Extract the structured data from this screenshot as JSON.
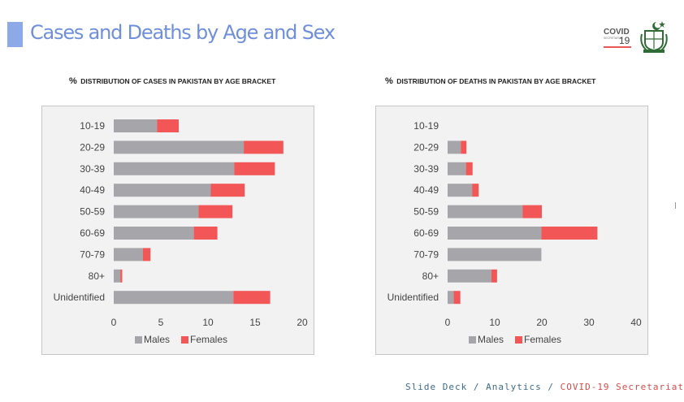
{
  "header": {
    "title": "Cases and Deaths by Age and Sex",
    "logo_covid": "COVID",
    "logo_covid_sub": "SECRETARIAT",
    "logo_19": "19"
  },
  "colors": {
    "males": "#a6a6aa",
    "females": "#f25656",
    "title": "#6f8fdc",
    "accent_bar": "#8ea9e8"
  },
  "charts": [
    {
      "title_first": "%",
      "title_rest": "Distribution of Cases in Pakistan by Age Bracket"
    },
    {
      "title_first": "%",
      "title_rest": "Distribution of Deaths in Pakistan by Age Bracket"
    }
  ],
  "chart_data": [
    {
      "type": "bar",
      "orientation": "horizontal",
      "stacked": true,
      "categories": [
        "10-19",
        "20-29",
        "30-39",
        "40-49",
        "50-59",
        "60-69",
        "70-79",
        "80+",
        "Unidentified"
      ],
      "series": [
        {
          "name": "Males",
          "values": [
            4.6,
            13.8,
            12.8,
            10.3,
            9.0,
            8.5,
            3.1,
            0.7,
            12.7
          ]
        },
        {
          "name": "Females",
          "values": [
            2.3,
            4.2,
            4.3,
            3.6,
            3.6,
            2.5,
            0.8,
            0.2,
            3.9
          ]
        }
      ],
      "xlim": [
        0,
        20
      ],
      "xticks": [
        "0",
        "5",
        "10",
        "15",
        "20"
      ],
      "legend_position": "bottom",
      "grid": false
    },
    {
      "type": "bar",
      "orientation": "horizontal",
      "stacked": true,
      "categories": [
        "10-19",
        "20-29",
        "30-39",
        "40-49",
        "50-59",
        "60-69",
        "70-79",
        "80+",
        "Unidentified"
      ],
      "series": [
        {
          "name": "Males",
          "values": [
            0,
            2.8,
            3.9,
            5.2,
            15.9,
            19.9,
            19.9,
            9.3,
            1.3
          ]
        },
        {
          "name": "Females",
          "values": [
            0,
            1.2,
            1.4,
            1.4,
            4.1,
            11.9,
            0,
            1.2,
            1.4
          ]
        }
      ],
      "xlim": [
        0,
        40
      ],
      "xticks": [
        "0",
        "10",
        "20",
        "30",
        "40"
      ],
      "legend_position": "bottom",
      "grid": false
    }
  ],
  "footer": {
    "part1": "Slide Deck / Analytics / ",
    "part2": "COVID-19 Secretariat"
  }
}
